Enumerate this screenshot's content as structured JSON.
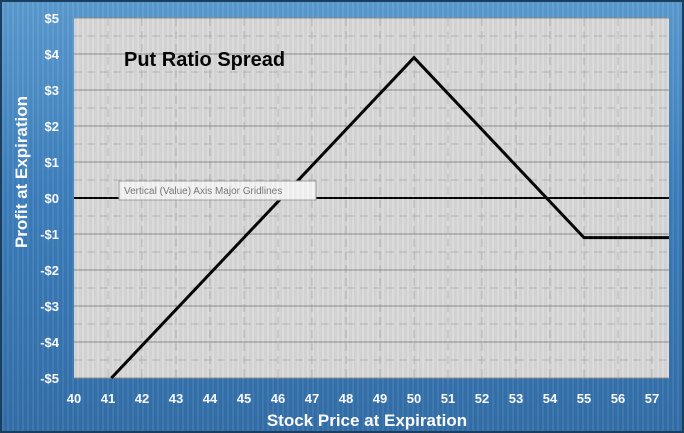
{
  "chart_data": {
    "type": "line",
    "title": "Put Ratio Spread",
    "xlabel": "Stock Price at Expiration",
    "ylabel": "Profit at Expiration",
    "xlim": [
      40,
      57.5
    ],
    "ylim": [
      -5,
      5
    ],
    "x_ticks": [
      40,
      41,
      42,
      43,
      44,
      45,
      46,
      47,
      48,
      49,
      50,
      51,
      52,
      53,
      54,
      55,
      56,
      57
    ],
    "y_ticks": [
      5,
      4,
      3,
      2,
      1,
      0,
      -1,
      -2,
      -3,
      -4,
      -5
    ],
    "y_tick_labels": [
      "$5",
      "$4",
      "$3",
      "$2",
      "$1",
      "$0",
      "-$1",
      "-$2",
      "-$3",
      "-$4",
      "-$5"
    ],
    "grid": true,
    "series": [
      {
        "x": [
          41.1,
          50,
          55,
          57.5
        ],
        "y": [
          -5,
          3.9,
          -1.1,
          -1.1
        ]
      }
    ],
    "annotations": [
      {
        "text": "Vertical (Value) Axis Major Gridlines"
      }
    ]
  },
  "colors": {
    "plot_background": "#d9d9d9",
    "series_line": "#000000",
    "gridline_major": "#8c8c8c",
    "gridline_minor": "#b4b4b4",
    "panel_blue": "#3d7fbd"
  }
}
